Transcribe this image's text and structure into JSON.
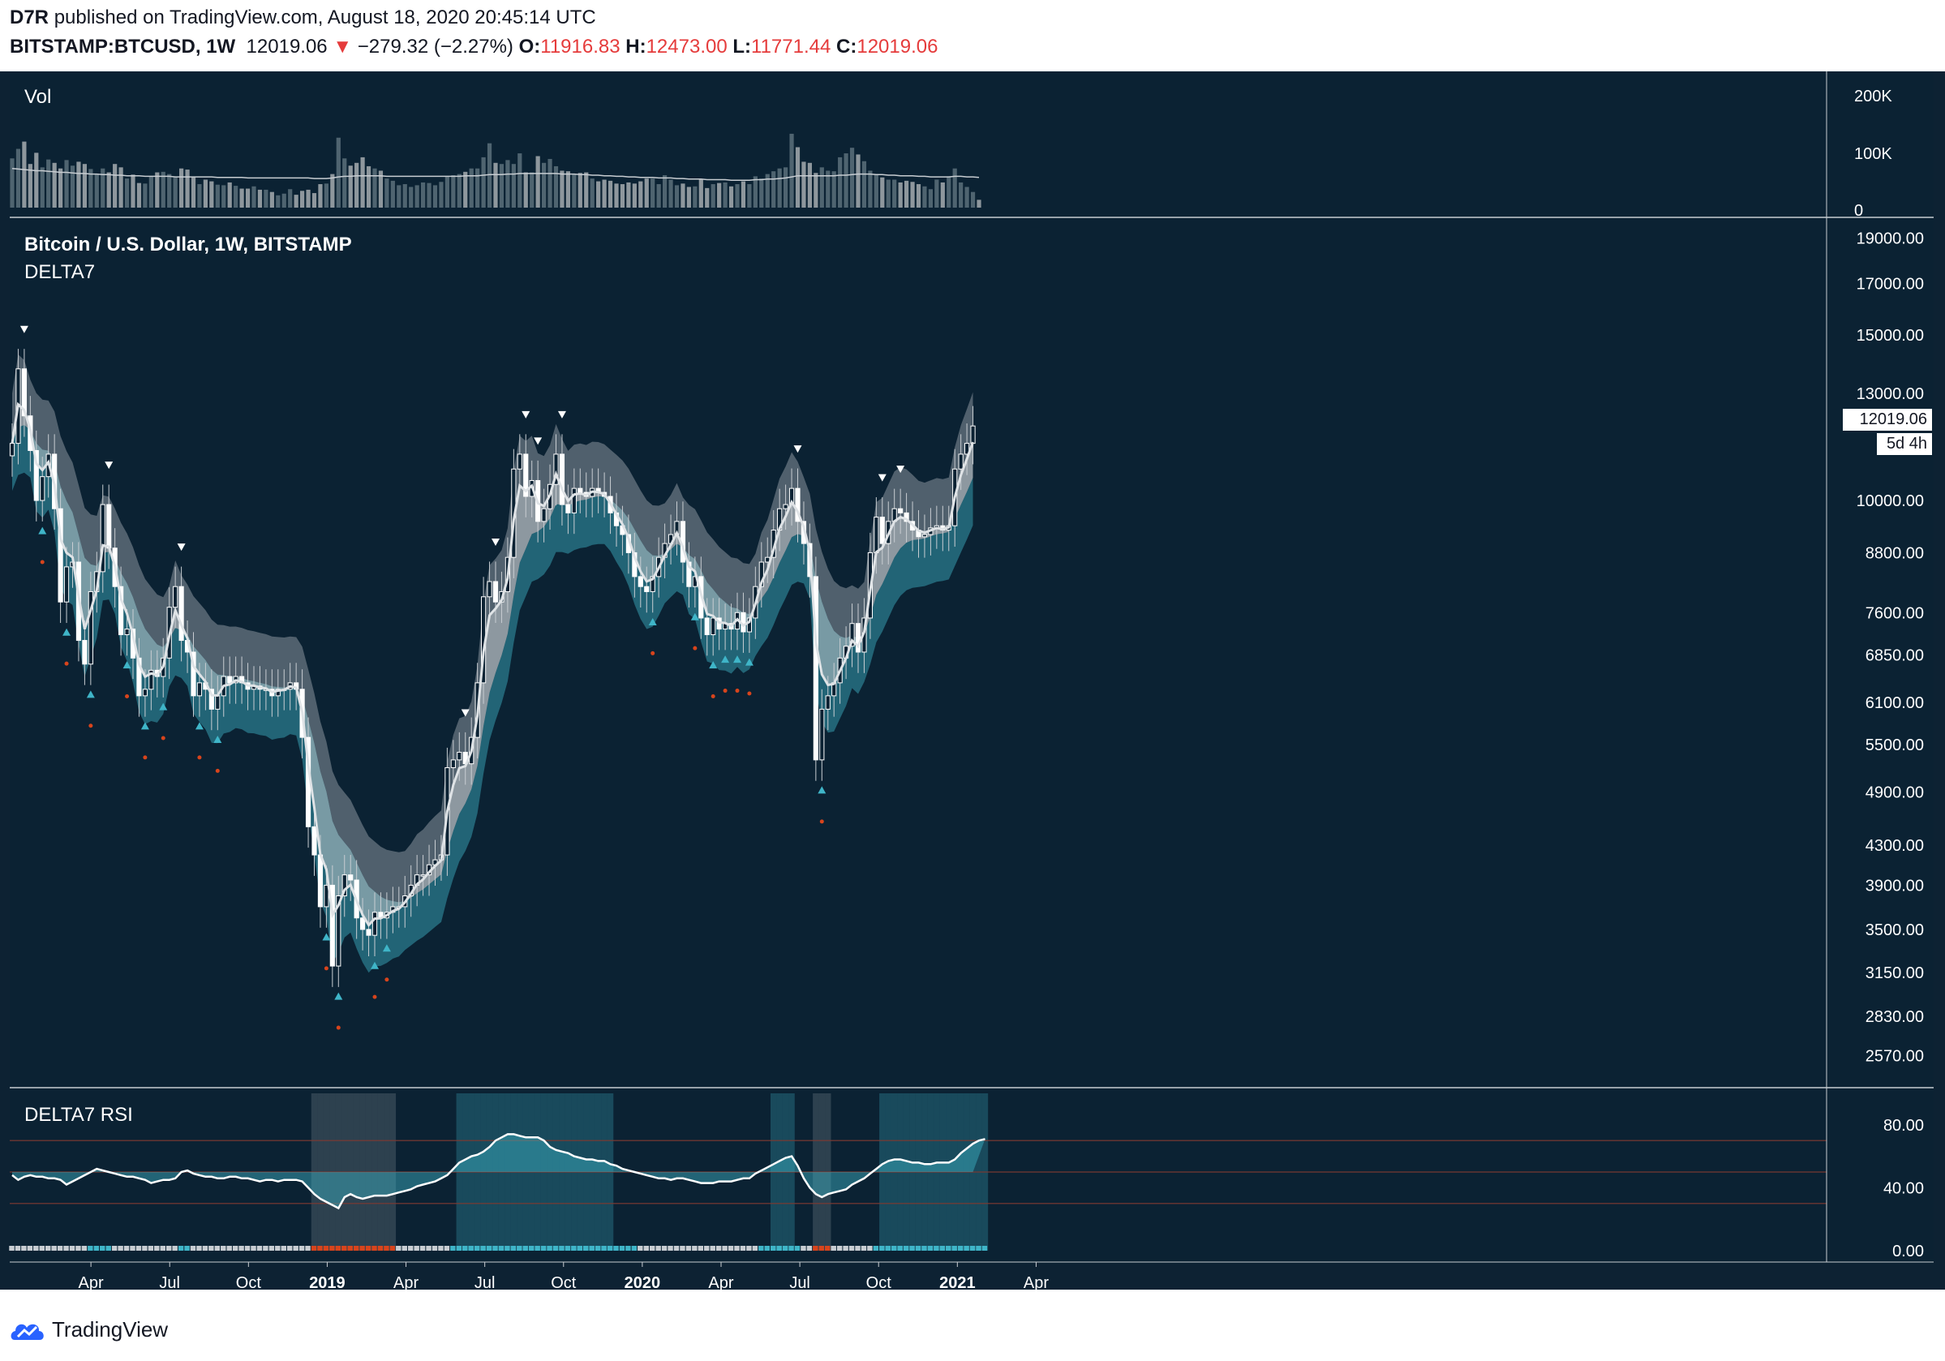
{
  "header": {
    "author": "D7R",
    "published_text": "published on TradingView.com, August 18, 2020 20:45:14 UTC",
    "symbol": "BITSTAMP:BTCUSD, 1W",
    "last": "12019.06",
    "change_arrow": "▼",
    "change": "−279.32 (−2.27%)",
    "o_label": "O:",
    "o_value": "11916.83",
    "h_label": "H:",
    "h_value": "12473.00",
    "l_label": "L:",
    "l_value": "11771.44",
    "c_label": "C:",
    "c_value": "12019.06"
  },
  "panels": {
    "volume_label": "Vol",
    "main_title": "Bitcoin / U.S. Dollar, 1W, BITSTAMP",
    "main_indicator": "DELTA7",
    "rsi_label": "DELTA7 RSI"
  },
  "price_badge": {
    "value": "12019.06",
    "countdown": "5d 4h"
  },
  "footer": {
    "brand": "TradingView",
    "logo_icon": "tradingview-cloud-icon"
  },
  "colors": {
    "background": "#0b2233",
    "bull_fill": "#0b2233",
    "bear_fill": "#ffffff",
    "cyan": "#3fb5c8",
    "grey_band": "#8a949c",
    "dot_red": "#d8441c",
    "overbought_line": "#7a3a32"
  },
  "chart_data": [
    {
      "type": "bar",
      "title": "Vol",
      "ylim": [
        0,
        200000
      ],
      "y_ticks": [
        "200K",
        "100K",
        "0"
      ],
      "weeks_from": "2018-01-01",
      "values": [
        88,
        105,
        118,
        78,
        98,
        72,
        86,
        80,
        70,
        85,
        75,
        82,
        78,
        69,
        60,
        70,
        63,
        78,
        72,
        52,
        59,
        44,
        43,
        55,
        63,
        64,
        60,
        55,
        70,
        68,
        55,
        42,
        50,
        47,
        41,
        40,
        45,
        39,
        34,
        34,
        38,
        32,
        32,
        28,
        22,
        25,
        33,
        23,
        30,
        32,
        26,
        42,
        43,
        60,
        125,
        88,
        75,
        80,
        90,
        74,
        70,
        66,
        52,
        48,
        40,
        42,
        37,
        40,
        45,
        44,
        40,
        46,
        56,
        58,
        60,
        64,
        70,
        70,
        90,
        115,
        80,
        78,
        85,
        78,
        97,
        63,
        63,
        92,
        80,
        87,
        74,
        66,
        65,
        60,
        62,
        63,
        52,
        47,
        50,
        48,
        43,
        42,
        45,
        43,
        47,
        52,
        52,
        42,
        58,
        50,
        40,
        43,
        37,
        38,
        50,
        35,
        42,
        44,
        45,
        38,
        42,
        47,
        42,
        56,
        52,
        60,
        65,
        70,
        72,
        132,
        108,
        82,
        80,
        62,
        72,
        66,
        65,
        90,
        97,
        107,
        95,
        83,
        66,
        60,
        54,
        50,
        50,
        45,
        48,
        46,
        42,
        38,
        33,
        50,
        45,
        56,
        70,
        45,
        37,
        28,
        14
      ],
      "ma": [
        70,
        69,
        68,
        67,
        66,
        66,
        65,
        64,
        63,
        63,
        62,
        61,
        61,
        60,
        60,
        59,
        59,
        58,
        58,
        57,
        57,
        57,
        56,
        56,
        56,
        56,
        56,
        55,
        55,
        55,
        55,
        55,
        55,
        55,
        54,
        54,
        54,
        54,
        54,
        53,
        53,
        53,
        53,
        53,
        53,
        53,
        53,
        53,
        53,
        53,
        52,
        52,
        52,
        53,
        55,
        56,
        56,
        57,
        57,
        57,
        57,
        57,
        56,
        56,
        56,
        56,
        56,
        56,
        56,
        56,
        56,
        56,
        56,
        56,
        56,
        57,
        57,
        57,
        58,
        59,
        59,
        59,
        60,
        60,
        61,
        61,
        61,
        61,
        61,
        61,
        61,
        60,
        60,
        60,
        59,
        59,
        58,
        58,
        57,
        57,
        56,
        56,
        55,
        55,
        54,
        54,
        54,
        53,
        53,
        53,
        52,
        52,
        51,
        51,
        51,
        50,
        50,
        50,
        50,
        49,
        49,
        49,
        49,
        50,
        50,
        51,
        51,
        52,
        53,
        55,
        57,
        57,
        57,
        57,
        57,
        57,
        57,
        58,
        58,
        59,
        60,
        60,
        60,
        59,
        59,
        58,
        58,
        57,
        57,
        57,
        56,
        56,
        55,
        55,
        55,
        55,
        56,
        56,
        55,
        55,
        54
      ]
    },
    {
      "type": "line",
      "title": "Bitcoin / U.S. Dollar, 1W, BITSTAMP",
      "log_scale": true,
      "ylim": [
        2400,
        19600
      ],
      "y_ticks": [
        19000,
        17000,
        15000,
        13000,
        10000,
        8800,
        7600,
        6850,
        6100,
        5500,
        4900,
        4300,
        3900,
        3500,
        3150,
        2830,
        2570
      ],
      "x_ticks": [
        "Apr",
        "Jul",
        "Oct",
        "2019",
        "Apr",
        "Jul",
        "Oct",
        "2020",
        "Apr",
        "Jul",
        "Oct",
        "2021",
        "Apr"
      ],
      "weeks_from": "2018-01-01",
      "close": [
        11500,
        13800,
        12300,
        11300,
        10000,
        10600,
        11200,
        9800,
        7800,
        8500,
        8600,
        7100,
        6700,
        8000,
        8400,
        9900,
        8900,
        8100,
        7200,
        7300,
        6800,
        6200,
        6300,
        6600,
        6500,
        6800,
        7700,
        8100,
        7100,
        6900,
        6200,
        6400,
        6300,
        6000,
        6200,
        6500,
        6400,
        6500,
        6400,
        6300,
        6350,
        6300,
        6300,
        6200,
        6300,
        6300,
        6400,
        6300,
        5600,
        4500,
        4200,
        3700,
        3900,
        3200,
        3800,
        4000,
        3950,
        3600,
        3500,
        3450,
        3650,
        3600,
        3650,
        3700,
        3700,
        3800,
        3900,
        4000,
        4000,
        4100,
        4150,
        4200,
        5200,
        5300,
        5400,
        5250,
        5600,
        6400,
        7900,
        8200,
        7800,
        8000,
        8700,
        10800,
        11200,
        10100,
        10500,
        9500,
        9800,
        10400,
        11200,
        9900,
        9700,
        10300,
        10200,
        10100,
        10300,
        10200,
        10100,
        9700,
        9400,
        9200,
        8800,
        8300,
        8100,
        8000,
        8300,
        8700,
        9000,
        9200,
        9500,
        8600,
        8100,
        8300,
        7500,
        7200,
        7500,
        7300,
        7400,
        7300,
        7600,
        7250,
        7500,
        8100,
        8600,
        8700,
        9300,
        9800,
        9900,
        10300,
        9500,
        9000,
        8300,
        5300,
        6000,
        6200,
        6400,
        6800,
        7000,
        7400,
        6900,
        7500,
        8800,
        9600,
        9000,
        9500,
        9800,
        9700,
        9500,
        9300,
        9150,
        9200,
        9350,
        9400,
        9300,
        9400,
        10800,
        11200,
        11500,
        12000
      ]
    },
    {
      "type": "line",
      "title": "DELTA7 RSI",
      "ylim": [
        0,
        100
      ],
      "y_ticks": [
        80,
        40,
        0
      ],
      "weeks_from": "2018-01-01",
      "series": [
        {
          "values": [
            48,
            45,
            47,
            48,
            47,
            47,
            46,
            46,
            45,
            42,
            44,
            46,
            48,
            50,
            52,
            51,
            50,
            49,
            48,
            47,
            47,
            46,
            45,
            43,
            44,
            45,
            45,
            46,
            50,
            51,
            49,
            48,
            47,
            47,
            46,
            46,
            47,
            47,
            46,
            46,
            45,
            44,
            45,
            45,
            44,
            45,
            45,
            45,
            44,
            40,
            36,
            33,
            31,
            29,
            27,
            34,
            36,
            34,
            33,
            34,
            35,
            35,
            35,
            36,
            37,
            38,
            39,
            41,
            42,
            43,
            44,
            46,
            48,
            52,
            56,
            58,
            60,
            61,
            63,
            66,
            70,
            72,
            74,
            74,
            73,
            72,
            72,
            72,
            70,
            66,
            64,
            63,
            62,
            60,
            59,
            58,
            58,
            57,
            57,
            55,
            54,
            52,
            51,
            50,
            49,
            48,
            47,
            46,
            46,
            45,
            46,
            46,
            45,
            44,
            43,
            43,
            43,
            44,
            44,
            44,
            45,
            46,
            46,
            49,
            51,
            53,
            55,
            57,
            59,
            60,
            54,
            46,
            40,
            36,
            34,
            36,
            37,
            38,
            39,
            42,
            44,
            46,
            49,
            52,
            55,
            57,
            58,
            58,
            57,
            56,
            56,
            55,
            55,
            56,
            56,
            56,
            58,
            62,
            65,
            68,
            70,
            71
          ]
        }
      ]
    }
  ]
}
